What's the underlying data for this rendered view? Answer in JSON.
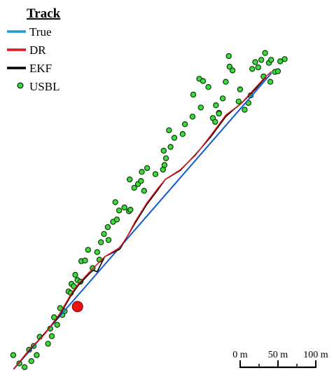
{
  "chart_data": {
    "type": "scatter",
    "legend": {
      "title": "Track",
      "position": "top-left",
      "entries": [
        {
          "name": "True",
          "color": "#1f9bd9",
          "marker": "line"
        },
        {
          "name": "DR",
          "color": "#e3141b",
          "marker": "line"
        },
        {
          "name": "EKF",
          "color": "#000000",
          "marker": "line"
        },
        {
          "name": "USBL",
          "color": "#3ddc3d",
          "marker": "circle"
        }
      ]
    },
    "scale_bar": {
      "ticks": [
        "0 m",
        "50 m",
        "100 m"
      ],
      "length_m": 100
    },
    "colors": {
      "true_track": "#1f9bd9",
      "true_track_overlay": "#2a3fd6",
      "dr_track": "#e3141b",
      "ekf_track": "#000000",
      "usbl_fill": "#3ddc3d",
      "usbl_stroke": "#0c3a0c",
      "marker_fill": "#ee1111",
      "marker_stroke": "#7a0000"
    },
    "axis_units": "m (east, north) from track start",
    "series": [
      {
        "name": "True",
        "x": [
          0,
          340
        ],
        "y": [
          0,
          390
        ]
      },
      {
        "name": "DR",
        "x": [
          0,
          20,
          40,
          60,
          75,
          85,
          100,
          120,
          140,
          150,
          160,
          175,
          190,
          200,
          220,
          240,
          260,
          280,
          300,
          320,
          333,
          340
        ],
        "y": [
          0,
          25,
          45,
          72,
          98,
          112,
          128,
          148,
          160,
          175,
          194,
          218,
          238,
          250,
          263,
          282,
          308,
          335,
          350,
          372,
          386,
          392
        ]
      },
      {
        "name": "EKF",
        "x": [
          0,
          20,
          40,
          60,
          75,
          85,
          100,
          105,
          110,
          120,
          140,
          150,
          160,
          175,
          190,
          200,
          220,
          240,
          260,
          280,
          290,
          300,
          320,
          333
        ],
        "y": [
          0,
          24,
          46,
          70,
          96,
          110,
          126,
          130,
          128,
          148,
          158,
          175,
          192,
          216,
          236,
          250,
          262,
          283,
          306,
          333,
          342,
          350,
          370,
          385
        ]
      },
      {
        "name": "USBL",
        "x": [
          -1,
          7,
          14,
          20,
          16,
          23,
          26,
          30,
          34,
          45,
          48,
          50,
          53,
          57,
          61,
          64,
          67,
          72,
          75,
          76,
          79,
          81,
          84,
          88,
          89,
          94,
          98,
          104,
          110,
          113,
          115,
          119,
          124,
          125,
          131,
          136,
          134,
          139,
          146,
          152,
          154,
          153,
          159,
          164,
          168,
          172,
          169,
          176,
          187,
          197,
          199,
          201,
          198,
          207,
          212,
          205,
          223,
          226,
          236,
          247,
          237,
          245,
          250,
          257,
          263,
          266,
          271,
          267,
          276,
          280,
          285,
          284,
          289,
          297,
          299,
          305,
          310,
          313,
          315,
          319,
          323,
          327,
          332,
          330,
          337,
          340,
          345,
          352,
          358,
          339,
          349,
          271
        ],
        "y": [
          18,
          7,
          2,
          25,
          -10,
          10,
          30,
          18,
          42,
          33,
          53,
          43,
          68,
          58,
          80,
          71,
          76,
          102,
          100,
          112,
          109,
          124,
          117,
          115,
          142,
          143,
          157,
          133,
          154,
          144,
          167,
          178,
          187,
          170,
          194,
          197,
          220,
          209,
          213,
          208,
          210,
          250,
          239,
          244,
          248,
          235,
          260,
          265,
          257,
          263,
          269,
          278,
          288,
          293,
          305,
          315,
          310,
          323,
          333,
          345,
          362,
          383,
          380,
          372,
          331,
          326,
          338,
          348,
          357,
          379,
          399,
          413,
          394,
          353,
          369,
          342,
          351,
          361,
          396,
          405,
          398,
          408,
          417,
          386,
          404,
          408,
          392,
          406,
          409,
          379,
          393,
          337
        ]
      },
      {
        "name": "Marker",
        "x": [
          84
        ],
        "y": [
          82
        ]
      }
    ]
  }
}
